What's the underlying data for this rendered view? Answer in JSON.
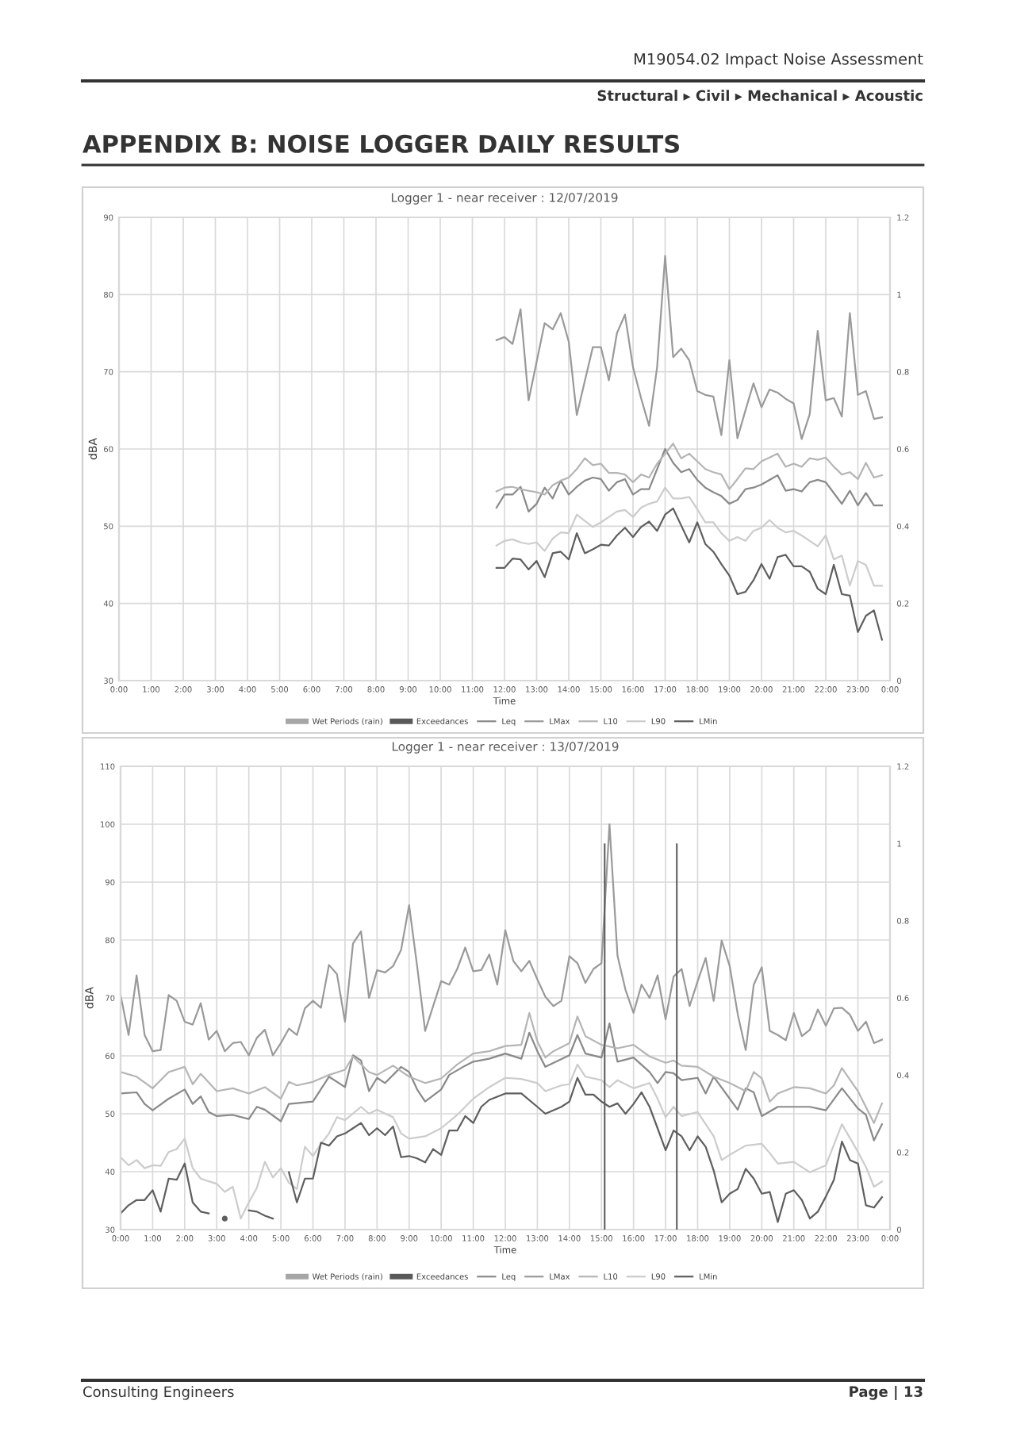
{
  "chart_data": [
    {
      "type": "line",
      "title": "Logger 1 - near receiver : 12/07/2019",
      "xlabel": "Time",
      "ylabel": "dBA",
      "annotations": [
        "M19054.02 Impact Noise Assessment",
        "Structural ▸ Civil ▸ Mechanical ▸ Acoustic",
        "APPENDIX B: NOISE LOGGER DAILY RESULTS"
      ],
      "xlim": [
        0,
        24
      ],
      "xticks": [
        {
          "value": 0,
          "label": "0:00"
        },
        {
          "value": 1,
          "label": "1:00"
        },
        {
          "value": 2,
          "label": "2:00"
        },
        {
          "value": 3,
          "label": "3:00"
        },
        {
          "value": 4,
          "label": "4:00"
        },
        {
          "value": 5,
          "label": "5:00"
        },
        {
          "value": 6,
          "label": "6:00"
        },
        {
          "value": 7,
          "label": "7:00"
        },
        {
          "value": 8,
          "label": "8:00"
        },
        {
          "value": 9,
          "label": "9:00"
        },
        {
          "value": 10,
          "label": "10:00"
        },
        {
          "value": 11,
          "label": "11:00"
        },
        {
          "value": 12,
          "label": "12:00"
        },
        {
          "value": 13,
          "label": "13:00"
        },
        {
          "value": 14,
          "label": "14:00"
        },
        {
          "value": 15,
          "label": "15:00"
        },
        {
          "value": 16,
          "label": "16:00"
        },
        {
          "value": 17,
          "label": "17:00"
        },
        {
          "value": 18,
          "label": "18:00"
        },
        {
          "value": 19,
          "label": "19:00"
        },
        {
          "value": 20,
          "label": "20:00"
        },
        {
          "value": 21,
          "label": "21:00"
        },
        {
          "value": 22,
          "label": "22:00"
        },
        {
          "value": 23,
          "label": "23:00"
        },
        {
          "value": 24,
          "label": "0:00"
        }
      ],
      "ylim": [
        30,
        90
      ],
      "yticks": [
        30,
        40,
        50,
        60,
        70,
        80,
        90
      ],
      "y2lim": [
        0,
        1.2
      ],
      "y2ticks": [
        0,
        0.2,
        0.4,
        0.6,
        0.8,
        1,
        1.2
      ],
      "grid": true,
      "legend": "bottom",
      "x": [
        11.75,
        12,
        12.25,
        12.5,
        12.75,
        13,
        13.25,
        13.5,
        13.75,
        14,
        14.25,
        14.5,
        14.75,
        15,
        15.25,
        15.5,
        15.75,
        16,
        16.25,
        16.5,
        16.75,
        17,
        17.25,
        17.5,
        17.75,
        18,
        18.25,
        18.5,
        18.75,
        19,
        19.25,
        19.5,
        19.75,
        20,
        20.25,
        20.5,
        20.75,
        21,
        21.25,
        21.5,
        21.75,
        22,
        22.25,
        22.5,
        22.75,
        23,
        23.25,
        23.5,
        23.75
      ],
      "series": [
        {
          "name": "Wet Periods (rain)",
          "type": "bar",
          "axis": "y2",
          "color": "#a6a6a6",
          "values": [
            null,
            null,
            null,
            null,
            null,
            null,
            null,
            null,
            null,
            null,
            null,
            null,
            null,
            null,
            null,
            null,
            null,
            null,
            null,
            null,
            null,
            null,
            null,
            null,
            null,
            null,
            null,
            null,
            null,
            null,
            null,
            null,
            null,
            null,
            null,
            null,
            null,
            null,
            null,
            null,
            null,
            null,
            null,
            null,
            null,
            null,
            null,
            null,
            null
          ]
        },
        {
          "name": "Exceedances",
          "type": "bar",
          "axis": "y2",
          "color": "#595959",
          "values": [
            null,
            null,
            null,
            null,
            null,
            null,
            null,
            null,
            null,
            null,
            null,
            null,
            null,
            null,
            null,
            null,
            null,
            null,
            null,
            null,
            null,
            null,
            null,
            null,
            null,
            null,
            null,
            null,
            null,
            null,
            null,
            null,
            null,
            null,
            null,
            null,
            null,
            null,
            null,
            null,
            null,
            null,
            null,
            null,
            null,
            null,
            null,
            null,
            null
          ]
        },
        {
          "name": "Leq",
          "color": "#8a8a8a",
          "values": [
            52.4,
            54.1,
            54.1,
            55.1,
            51.9,
            52.9,
            55.0,
            53.6,
            55.9,
            54.1,
            55.1,
            55.9,
            56.3,
            56.1,
            54.6,
            55.7,
            56.1,
            54.1,
            54.8,
            54.8,
            57.4,
            60.0,
            58.2,
            57.0,
            57.4,
            56.0,
            55.0,
            54.4,
            53.9,
            52.9,
            53.4,
            54.8,
            55.0,
            55.4,
            56.0,
            56.6,
            54.6,
            54.8,
            54.5,
            55.7,
            56.0,
            55.7,
            54.3,
            52.9,
            54.6,
            52.7,
            54.3,
            52.7,
            52.7
          ]
        },
        {
          "name": "LMax",
          "color": "#9a9a9a",
          "x": [
            11.75,
            12,
            12.25,
            12.5,
            12.75,
            13.25,
            13.5,
            13.75,
            14,
            14.25,
            14.75,
            15,
            15.25,
            15.5,
            15.75,
            16,
            16.25,
            16.5,
            16.75,
            17,
            17.25,
            17.5,
            17.75,
            18,
            18.25,
            18.5,
            18.75,
            19,
            19.25,
            19.5,
            19.75,
            20,
            20.25,
            20.5,
            20.75,
            21,
            21.25,
            21.5,
            21.75,
            22,
            22.25,
            22.5,
            22.75,
            23,
            23.25,
            23.5,
            23.75
          ],
          "values": [
            74.1,
            74.5,
            73.6,
            78.1,
            66.3,
            76.3,
            75.5,
            77.6,
            73.9,
            64.4,
            73.2,
            73.2,
            68.9,
            75.0,
            77.4,
            70.6,
            66.6,
            63.0,
            70.6,
            85.0,
            71.9,
            73.0,
            71.5,
            67.5,
            67.0,
            66.8,
            61.8,
            71.5,
            61.4,
            65.0,
            68.5,
            65.4,
            67.7,
            67.3,
            66.5,
            65.9,
            61.3,
            64.5,
            75.3,
            66.3,
            66.6,
            64.2,
            77.6,
            67.0,
            67.5,
            63.9,
            64.1
          ]
        },
        {
          "name": "L10",
          "color": "#b5b5b5",
          "values": [
            54.5,
            55.0,
            55.1,
            54.8,
            54.6,
            54.4,
            54.1,
            55.3,
            55.9,
            56.3,
            57.4,
            58.8,
            57.9,
            58.1,
            56.9,
            56.9,
            56.7,
            55.7,
            56.7,
            56.3,
            58.1,
            59.4,
            60.7,
            58.8,
            59.4,
            58.4,
            57.4,
            57.0,
            56.7,
            54.8,
            56.1,
            57.5,
            57.4,
            58.4,
            58.9,
            59.4,
            57.7,
            58.1,
            57.7,
            58.8,
            58.6,
            58.9,
            57.7,
            56.7,
            57.0,
            56.1,
            58.2,
            56.3,
            56.6
          ]
        },
        {
          "name": "L90",
          "color": "#cccccc",
          "values": [
            47.5,
            48.1,
            48.3,
            47.9,
            47.7,
            47.9,
            46.8,
            48.4,
            49.2,
            49.1,
            51.5,
            50.7,
            49.9,
            50.5,
            51.2,
            51.9,
            52.1,
            51.2,
            52.4,
            52.9,
            53.2,
            55.0,
            53.6,
            53.6,
            53.8,
            52.2,
            50.5,
            50.5,
            49.1,
            48.1,
            48.6,
            48.1,
            49.4,
            49.8,
            50.8,
            49.8,
            49.2,
            49.4,
            48.8,
            48.1,
            47.4,
            48.8,
            45.7,
            46.2,
            42.3,
            45.5,
            45.0,
            42.3,
            42.3
          ]
        },
        {
          "name": "LMin",
          "color": "#5f5f5f",
          "values": [
            44.6,
            44.6,
            45.8,
            45.7,
            44.4,
            45.5,
            43.4,
            46.5,
            46.7,
            45.7,
            49.1,
            46.5,
            47.0,
            47.6,
            47.5,
            48.8,
            49.8,
            48.6,
            49.9,
            50.6,
            49.4,
            51.5,
            52.3,
            50.1,
            47.9,
            50.5,
            47.7,
            46.7,
            45.1,
            43.6,
            41.2,
            41.5,
            43.0,
            45.1,
            43.2,
            46.0,
            46.3,
            44.8,
            44.8,
            44.1,
            41.9,
            41.2,
            45.0,
            41.2,
            41.0,
            36.3,
            38.4,
            39.1,
            35.3
          ]
        }
      ]
    },
    {
      "type": "line",
      "title": "Logger 1 - near receiver : 13/07/2019",
      "xlabel": "Time",
      "ylabel": "dBA",
      "annotations": [
        "Consulting Engineers",
        "Page | 13"
      ],
      "xlim": [
        0,
        24
      ],
      "xticks": [
        {
          "value": 0,
          "label": "0:00"
        },
        {
          "value": 1,
          "label": "1:00"
        },
        {
          "value": 2,
          "label": "2:00"
        },
        {
          "value": 3,
          "label": "3:00"
        },
        {
          "value": 4,
          "label": "4:00"
        },
        {
          "value": 5,
          "label": "5:00"
        },
        {
          "value": 6,
          "label": "6:00"
        },
        {
          "value": 7,
          "label": "7:00"
        },
        {
          "value": 8,
          "label": "8:00"
        },
        {
          "value": 9,
          "label": "9:00"
        },
        {
          "value": 10,
          "label": "10:00"
        },
        {
          "value": 11,
          "label": "11:00"
        },
        {
          "value": 12,
          "label": "12:00"
        },
        {
          "value": 13,
          "label": "13:00"
        },
        {
          "value": 14,
          "label": "14:00"
        },
        {
          "value": 15,
          "label": "15:00"
        },
        {
          "value": 16,
          "label": "16:00"
        },
        {
          "value": 17,
          "label": "17:00"
        },
        {
          "value": 18,
          "label": "18:00"
        },
        {
          "value": 19,
          "label": "19:00"
        },
        {
          "value": 20,
          "label": "20:00"
        },
        {
          "value": 21,
          "label": "21:00"
        },
        {
          "value": 22,
          "label": "22:00"
        },
        {
          "value": 23,
          "label": "23:00"
        },
        {
          "value": 24,
          "label": "0:00"
        }
      ],
      "ylim": [
        30,
        110
      ],
      "yticks": [
        30,
        40,
        50,
        60,
        70,
        80,
        90,
        100,
        110
      ],
      "y2lim": [
        0,
        1.2
      ],
      "y2ticks": [
        0,
        0.2,
        0.4,
        0.6,
        0.8,
        1,
        1.2
      ],
      "grid": true,
      "legend": "bottom",
      "x": [
        0,
        0.25,
        0.5,
        0.75,
        1,
        1.25,
        1.5,
        1.75,
        2,
        2.25,
        2.5,
        2.75,
        3,
        3.25,
        3.5,
        3.75,
        4,
        4.25,
        4.5,
        4.75,
        5,
        5.25,
        5.5,
        5.75,
        6,
        6.25,
        6.5,
        6.75,
        7,
        7.25,
        7.5,
        7.75,
        8,
        8.25,
        8.5,
        8.75,
        9,
        9.25,
        9.5,
        9.75,
        10,
        10.25,
        10.5,
        10.75,
        11,
        11.25,
        11.5,
        11.75,
        12,
        12.25,
        12.5,
        12.75,
        13,
        13.25,
        13.5,
        13.75,
        14,
        14.25,
        14.5,
        14.75,
        15,
        15.25,
        15.5,
        15.75,
        16,
        16.25,
        16.5,
        16.75,
        17,
        17.25,
        17.5,
        17.75,
        18,
        18.25,
        18.5,
        18.75,
        19,
        19.25,
        19.5,
        19.75,
        20,
        20.25,
        20.5,
        20.75,
        21,
        21.25,
        21.5,
        21.75,
        22,
        22.25,
        22.5,
        22.75,
        23,
        23.25,
        23.5,
        23.75
      ],
      "series": [
        {
          "name": "Wet Periods (rain)",
          "type": "bar",
          "axis": "y2",
          "color": "#a6a6a6",
          "values": [
            null,
            null,
            null,
            null,
            null,
            null,
            null,
            null,
            null,
            null,
            null,
            null,
            null,
            null,
            null,
            null,
            null,
            null,
            null,
            null,
            null,
            null,
            null,
            null,
            null,
            null,
            null,
            null,
            null,
            null,
            null,
            null,
            null,
            null,
            null,
            null,
            null,
            null,
            null,
            null,
            null,
            null,
            null,
            null,
            null,
            null,
            null,
            null,
            null,
            null,
            null,
            null,
            null,
            null,
            null,
            null,
            null,
            null,
            null,
            null,
            null,
            null,
            null,
            null,
            null,
            null,
            null,
            null,
            null,
            null,
            null,
            null,
            null,
            null,
            null,
            null,
            null,
            null,
            null,
            null,
            null,
            null,
            null,
            null,
            null,
            null,
            null,
            null,
            null,
            null,
            null,
            null,
            null,
            null,
            null,
            null
          ]
        },
        {
          "name": "Exceedances",
          "type": "bar",
          "axis": "y2",
          "color": "#595959",
          "x": [
            15.1,
            17.35
          ],
          "values": [
            1,
            1
          ]
        },
        {
          "name": "Leq",
          "color": "#8a8a8a",
          "x": [
            0,
            0.5,
            0.75,
            1,
            1.5,
            2,
            2.25,
            2.5,
            2.75,
            3,
            3.5,
            4,
            4.25,
            4.5,
            5,
            5.25,
            6,
            6.5,
            7,
            7.25,
            7.5,
            7.75,
            8,
            8.25,
            8.75,
            9,
            9.25,
            9.5,
            10,
            10.25,
            10.75,
            11,
            11.5,
            12,
            12.5,
            12.75,
            13,
            13.25,
            14,
            14.25,
            14.5,
            15,
            15.25,
            15.5,
            16,
            16.5,
            16.75,
            17,
            17.25,
            17.5,
            18,
            18.25,
            18.5,
            19,
            19.25,
            19.5,
            19.75,
            20,
            20.5,
            21,
            21.5,
            22,
            22.5,
            23,
            23.25,
            23.5,
            23.75
          ],
          "values": [
            53.5,
            53.7,
            51.7,
            50.6,
            52.6,
            54.2,
            51.7,
            53.0,
            50.3,
            49.6,
            49.8,
            49.1,
            51.2,
            50.7,
            48.7,
            51.7,
            52.1,
            56.4,
            54.6,
            60.1,
            59.2,
            53.9,
            56.2,
            55.3,
            58.1,
            57.2,
            54.2,
            52.1,
            54.2,
            56.7,
            58.3,
            59.0,
            59.5,
            60.4,
            59.5,
            64.0,
            60.8,
            58.1,
            60.1,
            63.6,
            60.4,
            59.7,
            65.6,
            59.0,
            59.7,
            57.2,
            55.3,
            57.2,
            57.0,
            55.8,
            56.2,
            53.5,
            56.4,
            52.6,
            50.7,
            54.4,
            53.7,
            49.6,
            51.2,
            51.2,
            51.2,
            50.6,
            54.4,
            50.9,
            49.8,
            45.4,
            48.2
          ]
        },
        {
          "name": "LMax",
          "color": "#9a9a9a",
          "values": [
            70.5,
            63.6,
            73.9,
            63.6,
            60.8,
            61.0,
            70.5,
            69.5,
            65.9,
            65.4,
            69.1,
            62.8,
            64.3,
            60.8,
            62.2,
            62.4,
            60.1,
            63.1,
            64.5,
            60.1,
            62.2,
            64.7,
            63.6,
            68.2,
            69.5,
            68.3,
            75.7,
            74.1,
            65.9,
            79.4,
            81.5,
            70.0,
            74.8,
            74.4,
            75.5,
            78.3,
            86.0,
            75.5,
            64.3,
            68.6,
            72.9,
            72.3,
            75.0,
            78.7,
            74.6,
            74.8,
            77.5,
            72.3,
            81.7,
            76.4,
            74.6,
            76.4,
            73.2,
            70.2,
            68.6,
            69.5,
            77.2,
            76.0,
            72.6,
            75.0,
            76.0,
            100,
            77.3,
            71.4,
            67.4,
            72.3,
            70.0,
            73.9,
            66.3,
            73.7,
            75.0,
            68.6,
            72.9,
            76.9,
            69.5,
            79.9,
            75.5,
            67.2,
            61.0,
            72.3,
            75.3,
            64.3,
            63.6,
            62.7,
            67.4,
            63.4,
            64.5,
            68.0,
            65.2,
            68.2,
            68.3,
            67.1,
            64.3,
            65.9,
            62.2,
            62.8
          ]
        },
        {
          "name": "L10",
          "color": "#b5b5b5",
          "x": [
            0,
            0.5,
            1,
            1.5,
            2,
            2.25,
            2.5,
            3,
            3.5,
            4,
            4.5,
            5,
            5.25,
            5.5,
            6,
            6.5,
            7,
            7.25,
            7.75,
            8,
            8.5,
            9,
            9.5,
            10,
            10.5,
            11,
            11.5,
            12,
            12.5,
            12.75,
            13,
            13.25,
            13.5,
            14,
            14.25,
            14.5,
            15,
            15.5,
            16,
            16.5,
            17,
            17.25,
            17.5,
            18,
            18.5,
            19,
            19.5,
            19.75,
            20,
            20.25,
            20.5,
            21,
            21.5,
            22,
            22.25,
            22.5,
            23,
            23.5,
            23.75
          ],
          "values": [
            57.2,
            56.4,
            54.4,
            57.2,
            58.1,
            55.1,
            56.9,
            53.9,
            54.4,
            53.5,
            54.6,
            52.6,
            55.5,
            54.9,
            55.5,
            56.7,
            57.6,
            59.9,
            57.2,
            56.7,
            58.3,
            56.4,
            55.3,
            56.1,
            58.5,
            60.4,
            60.8,
            61.7,
            61.9,
            67.4,
            62.5,
            59.7,
            60.8,
            62.2,
            66.8,
            63.4,
            61.9,
            61.3,
            61.9,
            59.9,
            58.8,
            59.2,
            58.3,
            58.1,
            56.4,
            55.3,
            53.9,
            57.2,
            56.1,
            52.1,
            53.5,
            54.6,
            54.4,
            53.5,
            54.9,
            57.9,
            53.9,
            48.4,
            51.8
          ]
        },
        {
          "name": "L90",
          "color": "#cccccc",
          "x": [
            0,
            0.25,
            0.5,
            0.75,
            1,
            1.25,
            1.5,
            1.75,
            2,
            2.25,
            2.5,
            3,
            3.25,
            3.5,
            3.75,
            4,
            4.25,
            4.5,
            4.75,
            5,
            5.25,
            5.5,
            5.75,
            6,
            6.25,
            6.5,
            6.75,
            7,
            7.5,
            7.75,
            8,
            8.5,
            8.75,
            9,
            9.5,
            10,
            10.5,
            11,
            11.5,
            12,
            12.5,
            13,
            13.25,
            13.75,
            14,
            14.25,
            14.5,
            15,
            15.25,
            15.5,
            16,
            16.5,
            16.75,
            17,
            17.25,
            17.5,
            18,
            18.5,
            18.75,
            19,
            19.5,
            20,
            20.25,
            20.5,
            21,
            21.5,
            22,
            22.5,
            23,
            23.25,
            23.5,
            23.75
          ],
          "values": [
            42.5,
            41.1,
            42.0,
            40.6,
            41.1,
            41.0,
            43.4,
            43.9,
            45.7,
            40.6,
            38.8,
            37.9,
            36.5,
            37.4,
            31.9,
            34.7,
            37.2,
            41.7,
            39.0,
            40.6,
            38.1,
            37.0,
            44.3,
            42.7,
            44.8,
            46.6,
            49.4,
            48.9,
            51.2,
            50.0,
            50.7,
            49.4,
            46.6,
            45.7,
            46.1,
            47.5,
            49.8,
            52.6,
            54.6,
            56.2,
            56.0,
            55.3,
            53.9,
            54.9,
            55.1,
            58.5,
            56.4,
            55.8,
            54.6,
            55.8,
            54.4,
            55.3,
            52.6,
            49.4,
            51.2,
            49.6,
            50.3,
            46.1,
            42.0,
            42.9,
            44.5,
            44.8,
            43.2,
            41.4,
            41.7,
            39.9,
            41.1,
            48.2,
            43.4,
            40.8,
            37.4,
            38.3
          ]
        },
        {
          "name": "LMin",
          "color": "#5f5f5f",
          "x": [
            0,
            0.25,
            0.5,
            0.75,
            1,
            1.25,
            1.5,
            1.75,
            2,
            2.25,
            2.5,
            2.75,
            3,
            3.25,
            3.5,
            3.75,
            4,
            4.25,
            4.5,
            4.75,
            5,
            5.25,
            5.5,
            5.75,
            6,
            6.25,
            6.5,
            6.75,
            7,
            7.25,
            7.5,
            7.75,
            8,
            8.25,
            8.5,
            8.75,
            9,
            9.25,
            9.5,
            9.75,
            10,
            10.25,
            10.5,
            10.75,
            11,
            11.25,
            11.5,
            12,
            12.5,
            13,
            13.25,
            13.75,
            14,
            14.25,
            14.5,
            14.75,
            15,
            15.25,
            15.5,
            15.75,
            16,
            16.25,
            16.5,
            16.75,
            17,
            17.25,
            17.5,
            17.75,
            18,
            18.25,
            18.5,
            18.75,
            19,
            19.25,
            19.5,
            19.75,
            20,
            20.25,
            20.5,
            20.75,
            21,
            21.25,
            21.5,
            21.75,
            22,
            22.25,
            22.5,
            22.75,
            23,
            23.25,
            23.5,
            23.75
          ],
          "values": [
            32.8,
            34.2,
            35.1,
            35.1,
            36.8,
            33.1,
            38.8,
            38.6,
            41.4,
            34.7,
            33.1,
            32.8,
            null,
            31.9,
            null,
            null,
            33.3,
            33.1,
            32.4,
            31.9,
            null,
            39.9,
            34.7,
            38.8,
            38.8,
            45.0,
            44.5,
            46.1,
            46.6,
            47.5,
            48.4,
            46.3,
            47.5,
            46.3,
            47.8,
            42.5,
            42.7,
            42.3,
            41.6,
            43.9,
            42.9,
            47.1,
            47.1,
            49.6,
            48.4,
            51.2,
            52.4,
            53.5,
            53.5,
            51.2,
            50.0,
            51.2,
            52.1,
            56.2,
            53.3,
            53.3,
            52.1,
            51.2,
            51.8,
            50.0,
            51.7,
            53.7,
            51.2,
            47.5,
            43.7,
            47.1,
            46.1,
            43.7,
            46.1,
            44.3,
            40.2,
            34.7,
            36.2,
            37.0,
            40.5,
            38.8,
            36.2,
            36.5,
            31.3,
            36.2,
            36.8,
            35.1,
            31.9,
            33.1,
            35.7,
            38.6,
            45.2,
            42.0,
            41.4,
            34.2,
            33.8,
            35.6
          ]
        }
      ]
    }
  ]
}
